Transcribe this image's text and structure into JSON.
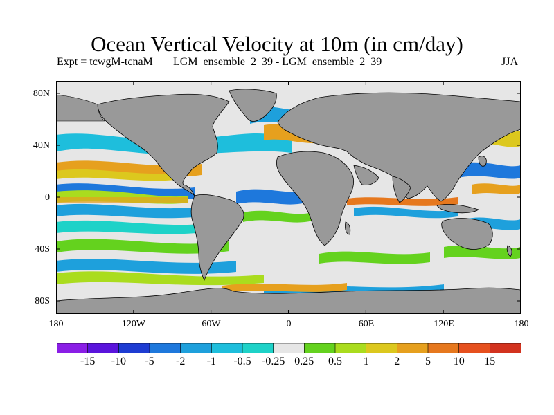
{
  "title": "Ocean Vertical Velocity at 10m (in cm/day)",
  "subtitle": {
    "experiment": "Expt = tcwgM-tcnaM",
    "runs": "LGM_ensemble_2_39 - LGM_ensemble_2_39",
    "season": "JJA"
  },
  "map": {
    "latitude_labels": [
      "80N",
      "40N",
      "0",
      "40S",
      "80S"
    ],
    "longitude_labels": [
      "180",
      "120W",
      "60W",
      "0",
      "60E",
      "120E",
      "180"
    ],
    "land_color": "#999999",
    "sea_ice_color": "#e6e6e6"
  },
  "colorbar": {
    "labels": [
      "-15",
      "-10",
      "-5",
      "-2",
      "-1",
      "-0.5",
      "-0.25",
      "0.25",
      "0.5",
      "1",
      "2",
      "5",
      "10",
      "15"
    ],
    "colors": [
      "#8a1ee6",
      "#5a14dc",
      "#1e3cd2",
      "#1e78dc",
      "#1ea0dc",
      "#1ebedc",
      "#1ed2c8",
      "#e6e6e6",
      "#64d21e",
      "#aadc1e",
      "#dcc81e",
      "#e6a01e",
      "#e6781e",
      "#e6501e",
      "#d2321e"
    ]
  }
}
